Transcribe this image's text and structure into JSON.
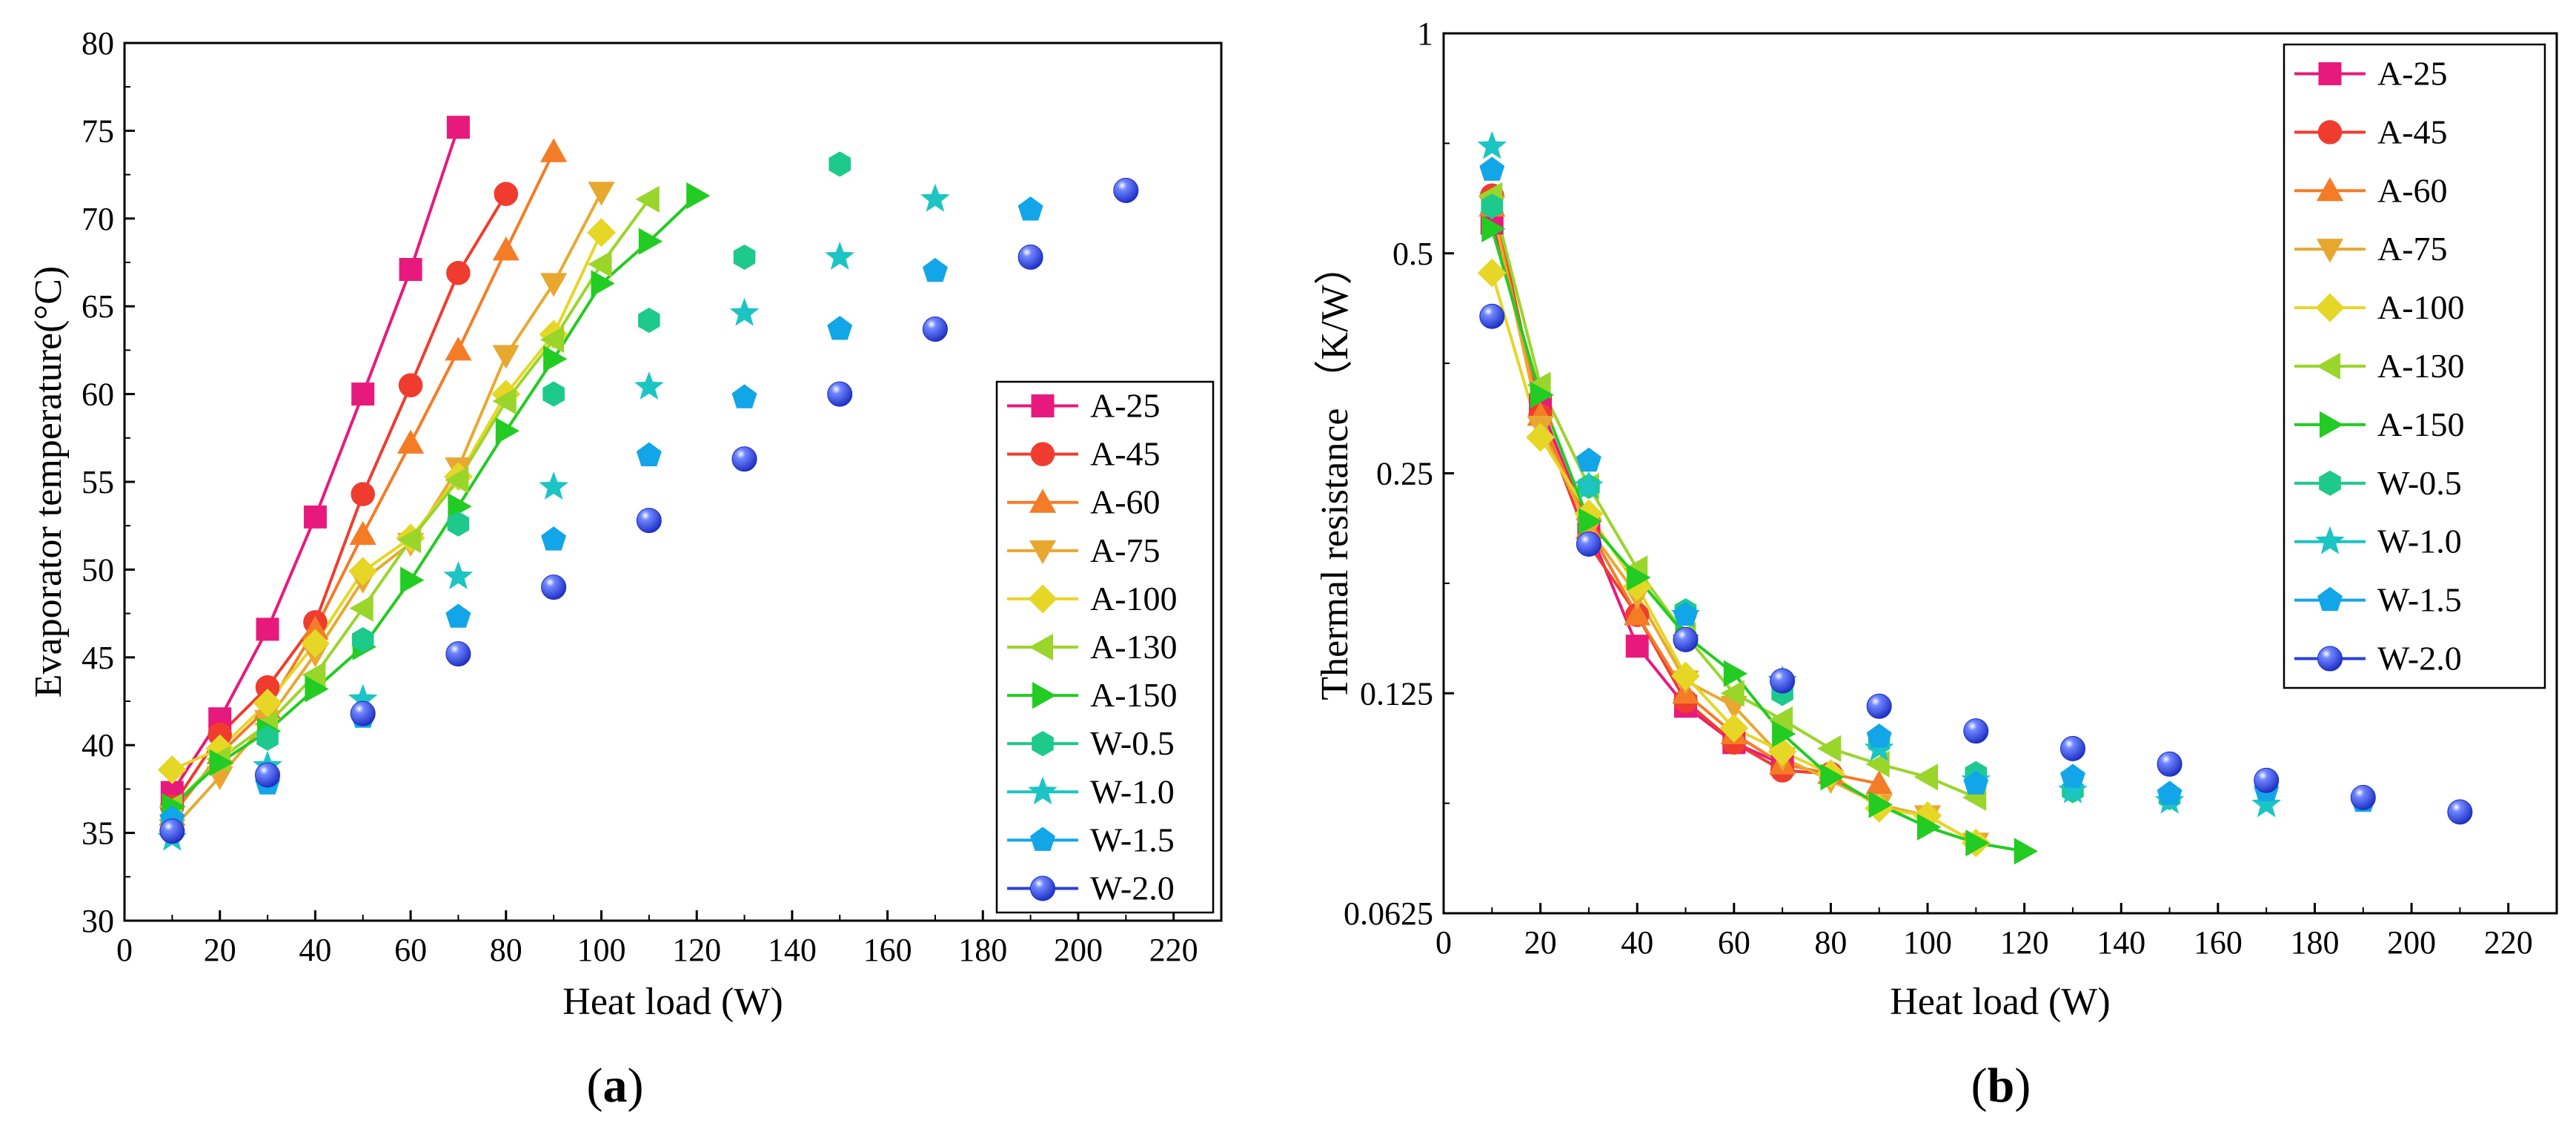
{
  "styles": {
    "A-25": {
      "color": "#e8197c",
      "marker": "square"
    },
    "A-45": {
      "color": "#f03c2e",
      "marker": "circle"
    },
    "A-60": {
      "color": "#f47c27",
      "marker": "triangle-up"
    },
    "A-75": {
      "color": "#e8a830",
      "marker": "triangle-down"
    },
    "A-100": {
      "color": "#e6d626",
      "marker": "diamond"
    },
    "A-130": {
      "color": "#9ad52b",
      "marker": "triangle-left"
    },
    "A-150": {
      "color": "#22cc22",
      "marker": "triangle-right"
    },
    "W-0.5": {
      "color": "#1ec98c",
      "marker": "hexagon"
    },
    "W-1.0": {
      "color": "#1cc4c4",
      "marker": "star"
    },
    "W-1.5": {
      "color": "#12a6e8",
      "marker": "pentagon"
    },
    "W-2.0": {
      "color": "#2a3fe0",
      "marker": "sphere"
    }
  },
  "chart_data": [
    {
      "type": "line",
      "panel_label": "a",
      "xlabel": "Heat load (W)",
      "ylabel": "Evaporator temperature(°C)",
      "xlim": [
        0,
        230
      ],
      "ylim": [
        30,
        80
      ],
      "xticks": [
        0,
        20,
        40,
        60,
        80,
        100,
        120,
        140,
        160,
        180,
        200,
        220
      ],
      "yticks": [
        30,
        35,
        40,
        45,
        50,
        55,
        60,
        65,
        70,
        75,
        80
      ],
      "legend_position": "right",
      "series": [
        {
          "name": "A-25",
          "line": true,
          "x": [
            10,
            20,
            30,
            40,
            50,
            60,
            70
          ],
          "y": [
            37.3,
            41.5,
            46.6,
            53,
            60,
            67.1,
            75.2
          ]
        },
        {
          "name": "A-45",
          "line": true,
          "x": [
            10,
            20,
            30,
            40,
            50,
            60,
            70,
            80
          ],
          "y": [
            36.5,
            40.6,
            43.3,
            47,
            54.3,
            60.5,
            66.9,
            71.4
          ]
        },
        {
          "name": "A-60",
          "line": true,
          "x": [
            10,
            20,
            30,
            40,
            50,
            60,
            70,
            80,
            90
          ],
          "y": [
            36,
            39.5,
            42.1,
            46.6,
            52,
            57.2,
            62.5,
            68.2,
            73.8
          ]
        },
        {
          "name": "A-75",
          "line": true,
          "x": [
            10,
            20,
            30,
            40,
            50,
            60,
            70,
            80,
            90,
            100
          ],
          "y": [
            35.2,
            38.2,
            41.4,
            45.2,
            49.4,
            51.5,
            55.8,
            62.2,
            66.3,
            71.5
          ]
        },
        {
          "name": "A-100",
          "line": true,
          "x": [
            10,
            20,
            30,
            40,
            50,
            60,
            70,
            80,
            90,
            100
          ],
          "y": [
            38.6,
            39.8,
            42.4,
            45.8,
            49.9,
            51.8,
            55.3,
            60,
            63.4,
            69.2
          ]
        },
        {
          "name": "A-130",
          "line": true,
          "x": [
            10,
            20,
            30,
            40,
            50,
            60,
            70,
            80,
            90,
            100,
            110
          ],
          "y": [
            36.5,
            39.2,
            41.2,
            44,
            47.8,
            51.7,
            55.1,
            59.6,
            63.1,
            67.4,
            71.1
          ]
        },
        {
          "name": "A-150",
          "line": true,
          "x": [
            10,
            20,
            30,
            40,
            50,
            60,
            70,
            80,
            90,
            100,
            110,
            120
          ],
          "y": [
            36.5,
            39,
            40.8,
            43.2,
            45.6,
            49.4,
            53.6,
            57.9,
            62,
            66.3,
            68.7,
            71.3
          ]
        },
        {
          "name": "W-0.5",
          "line": false,
          "x": [
            10,
            30,
            50,
            70,
            90,
            110,
            130,
            150
          ],
          "y": [
            35.4,
            40.4,
            46,
            52.6,
            60,
            64.2,
            67.8,
            73.1
          ]
        },
        {
          "name": "W-1.0",
          "line": false,
          "x": [
            10,
            30,
            50,
            70,
            90,
            110,
            130,
            150,
            170
          ],
          "y": [
            34.7,
            38.8,
            42.6,
            49.6,
            54.7,
            60.4,
            64.6,
            67.8,
            71.1
          ]
        },
        {
          "name": "W-1.5",
          "line": false,
          "x": [
            10,
            30,
            50,
            70,
            90,
            110,
            130,
            150,
            170,
            190
          ],
          "y": [
            35.8,
            37.8,
            41.6,
            47.3,
            51.7,
            56.5,
            59.8,
            63.7,
            67,
            70.5
          ]
        },
        {
          "name": "W-2.0",
          "line": false,
          "x": [
            10,
            30,
            50,
            70,
            90,
            110,
            130,
            150,
            170,
            190,
            210
          ],
          "y": [
            35.1,
            38.3,
            41.8,
            45.2,
            49,
            52.8,
            56.3,
            60,
            63.7,
            67.8,
            71.6
          ]
        }
      ]
    },
    {
      "type": "line",
      "panel_label": "b",
      "xlabel": "Heat load (W)",
      "ylabel": "Thermal resistance （K/W）",
      "yscale": "log2",
      "xlim": [
        0,
        230
      ],
      "ylim": [
        0.0625,
        1
      ],
      "xticks": [
        0,
        20,
        40,
        60,
        80,
        100,
        120,
        140,
        160,
        180,
        200,
        220
      ],
      "yticks": [
        0.0625,
        0.125,
        0.25,
        0.5,
        1
      ],
      "ytick_labels": [
        "0.0625",
        "0.125",
        "0.25",
        "0.5",
        "1"
      ],
      "legend_position": "top-right",
      "series": [
        {
          "name": "A-25",
          "line": true,
          "x": [
            10,
            20,
            30,
            40,
            50,
            60,
            70
          ],
          "y": [
            0.55,
            0.31,
            0.21,
            0.145,
            0.12,
            0.107,
            0.1
          ]
        },
        {
          "name": "A-45",
          "line": true,
          "x": [
            10,
            20,
            30,
            40,
            50,
            60,
            70,
            80
          ],
          "y": [
            0.6,
            0.3,
            0.2,
            0.16,
            0.122,
            0.107,
            0.098,
            0.097
          ]
        },
        {
          "name": "A-60",
          "line": true,
          "x": [
            10,
            20,
            30,
            40,
            50,
            60,
            70,
            80,
            90
          ],
          "y": [
            0.58,
            0.3,
            0.21,
            0.16,
            0.125,
            0.11,
            0.1,
            0.097,
            0.094
          ]
        },
        {
          "name": "A-75",
          "line": true,
          "x": [
            10,
            20,
            30,
            40,
            50,
            60,
            70,
            80,
            90,
            100,
            110
          ],
          "y": [
            0.58,
            0.29,
            0.21,
            0.17,
            0.13,
            0.12,
            0.102,
            0.095,
            0.088,
            0.085,
            0.078
          ]
        },
        {
          "name": "A-100",
          "line": true,
          "x": [
            10,
            20,
            30,
            40,
            50,
            60,
            70,
            80,
            90,
            100,
            110
          ],
          "y": [
            0.47,
            0.28,
            0.22,
            0.175,
            0.132,
            0.112,
            0.104,
            0.097,
            0.087,
            0.085,
            0.078
          ]
        },
        {
          "name": "A-130",
          "line": true,
          "x": [
            10,
            20,
            30,
            40,
            50,
            60,
            70,
            80,
            90,
            100,
            110
          ],
          "y": [
            0.6,
            0.33,
            0.24,
            0.185,
            0.15,
            0.125,
            0.115,
            0.105,
            0.1,
            0.096,
            0.09
          ]
        },
        {
          "name": "A-150",
          "line": true,
          "x": [
            10,
            20,
            30,
            40,
            50,
            60,
            70,
            80,
            90,
            100,
            110,
            120
          ],
          "y": [
            0.54,
            0.32,
            0.215,
            0.18,
            0.15,
            0.133,
            0.11,
            0.096,
            0.088,
            0.082,
            0.078,
            0.076
          ]
        },
        {
          "name": "W-0.5",
          "line": false,
          "x": [
            10,
            30,
            50,
            70,
            90,
            110,
            130,
            150
          ],
          "y": [
            0.58,
            0.24,
            0.162,
            0.125,
            0.107,
            0.097,
            0.092,
            0.09
          ]
        },
        {
          "name": "W-1.0",
          "line": false,
          "x": [
            10,
            30,
            50,
            70,
            90,
            110,
            130,
            150,
            170
          ],
          "y": [
            0.7,
            0.24,
            0.16,
            0.13,
            0.105,
            0.095,
            0.092,
            0.089,
            0.088
          ]
        },
        {
          "name": "W-1.5",
          "line": false,
          "x": [
            10,
            30,
            50,
            70,
            90,
            110,
            130,
            150,
            170,
            190
          ],
          "y": [
            0.65,
            0.26,
            0.16,
            0.13,
            0.109,
            0.094,
            0.096,
            0.091,
            0.092,
            0.089
          ]
        },
        {
          "name": "W-2.0",
          "line": false,
          "x": [
            10,
            30,
            50,
            70,
            90,
            110,
            130,
            150,
            170,
            190,
            210
          ],
          "y": [
            0.41,
            0.2,
            0.148,
            0.13,
            0.12,
            0.111,
            0.105,
            0.1,
            0.095,
            0.09,
            0.086
          ]
        }
      ]
    }
  ]
}
